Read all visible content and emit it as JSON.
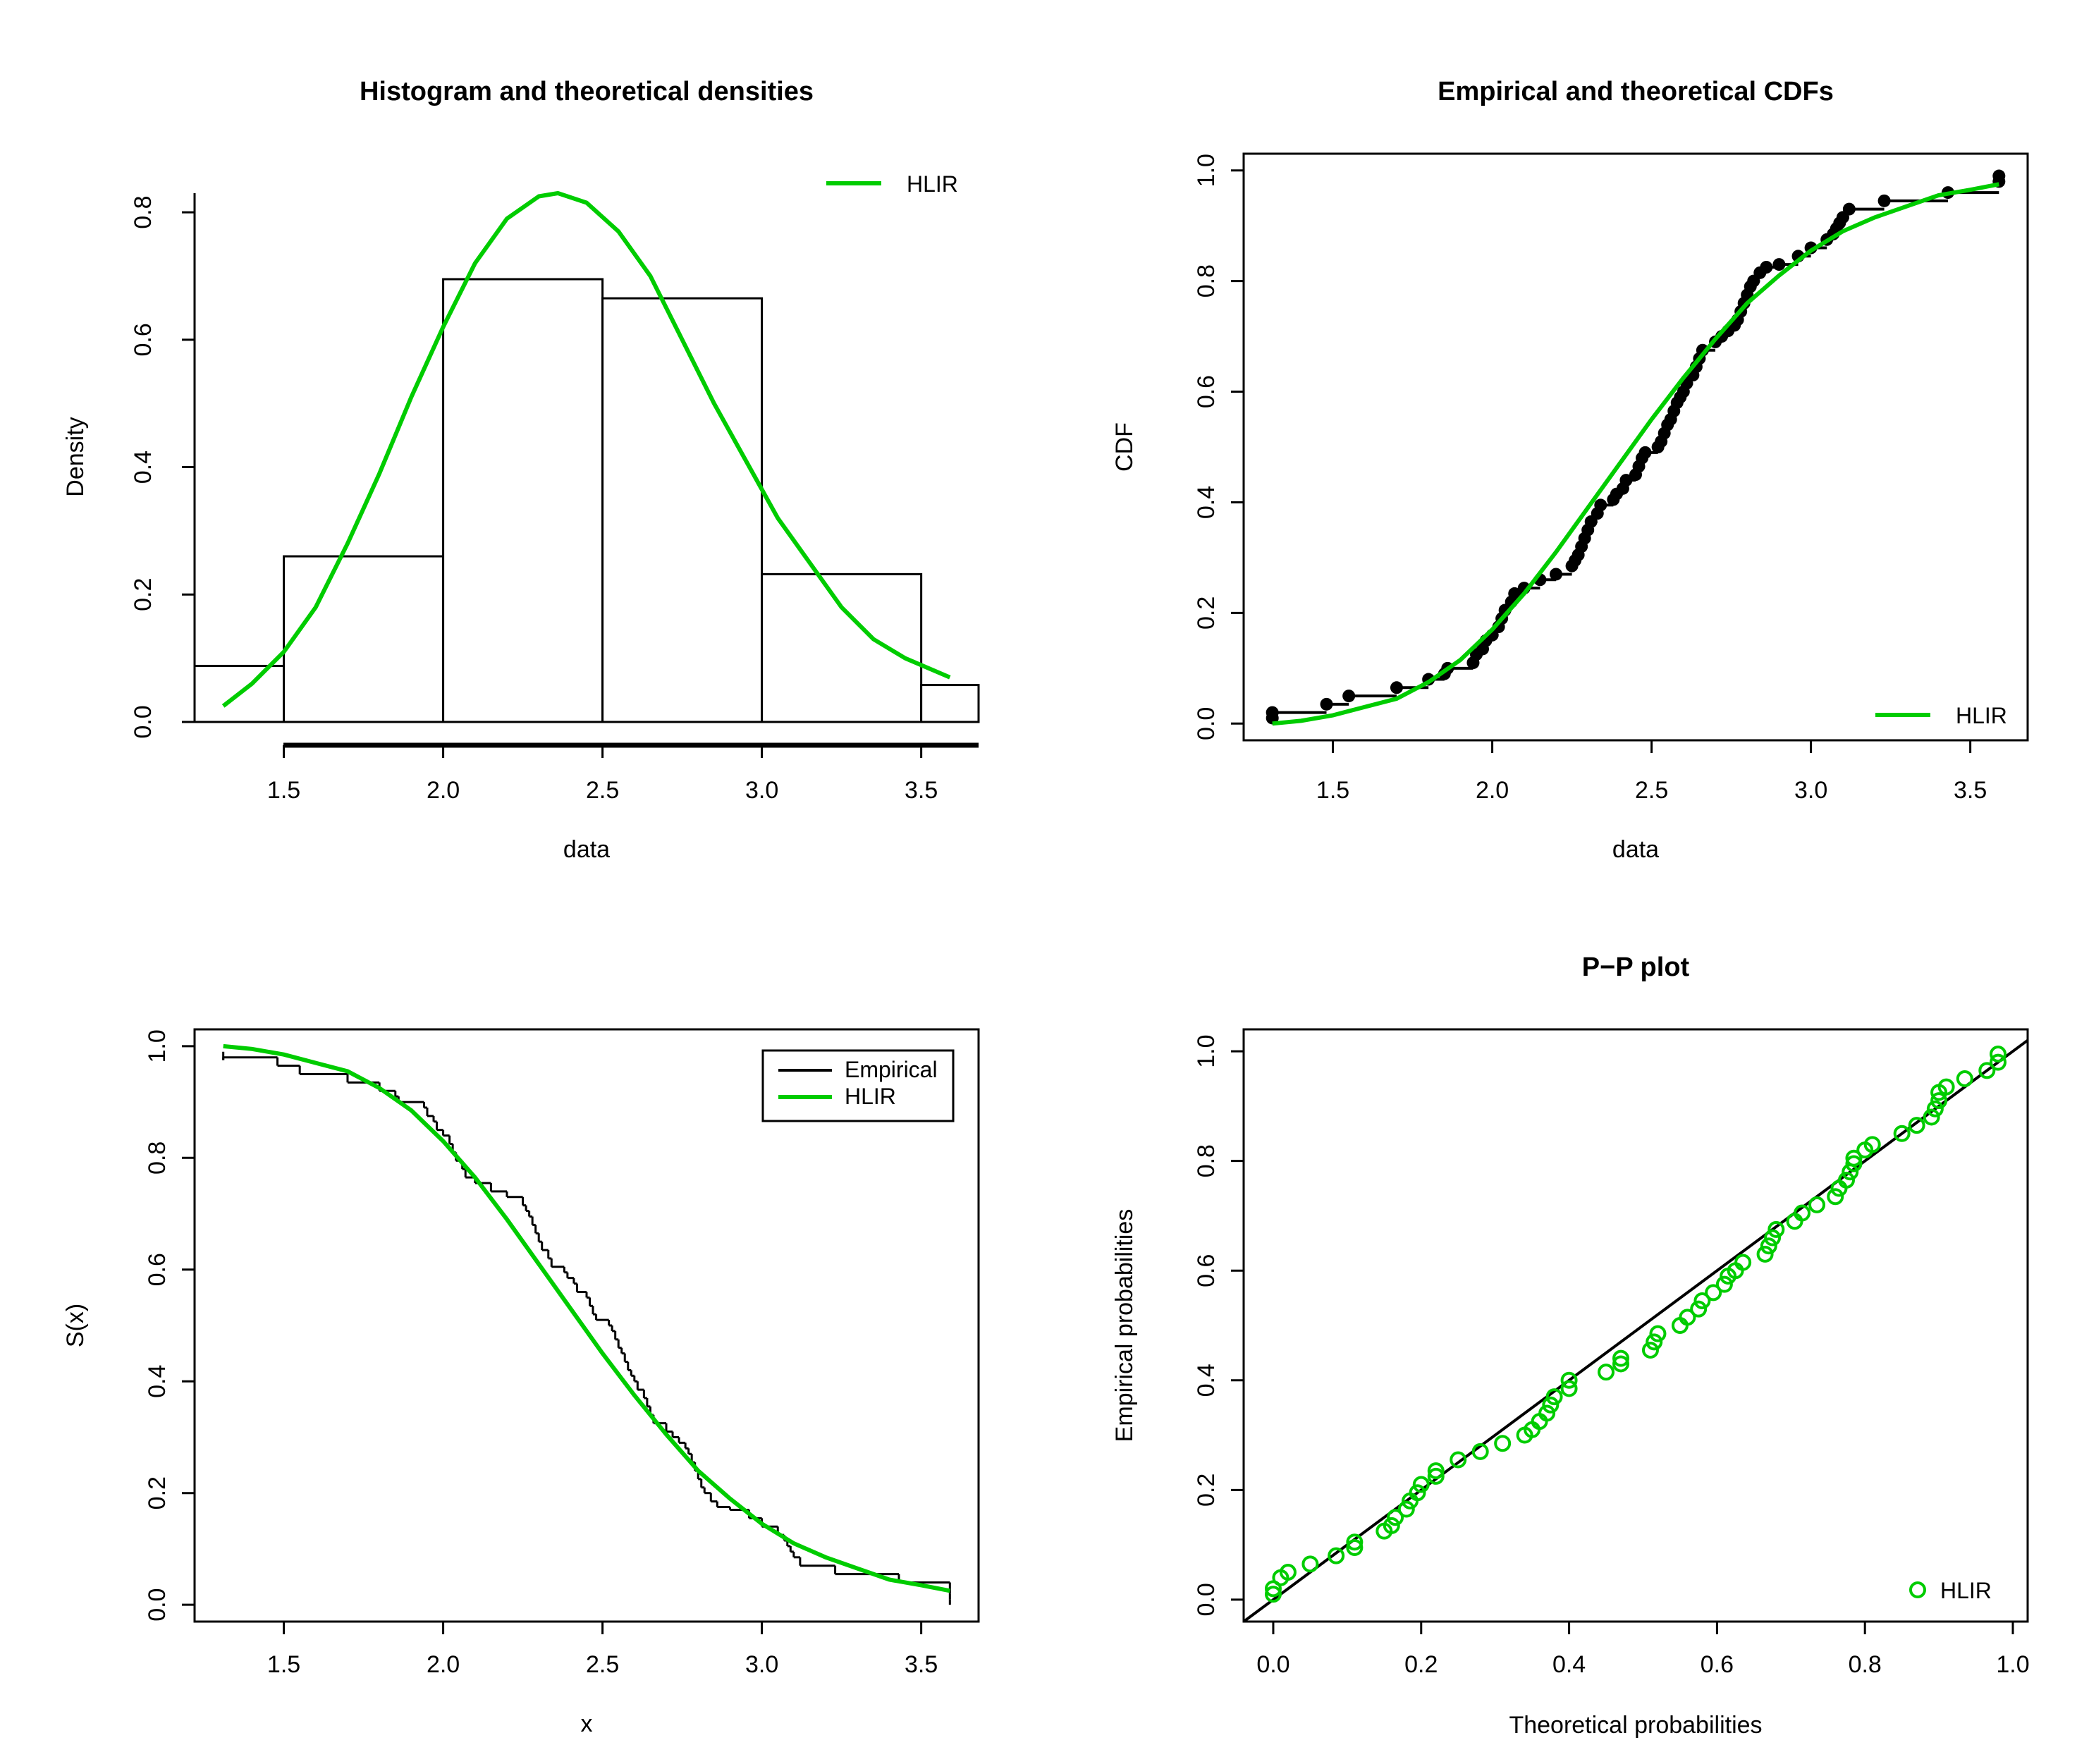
{
  "colors": {
    "fit": "#00cc00",
    "empirical": "#000000"
  },
  "chart_data": [
    {
      "id": "density",
      "type": "bar",
      "title": "Histogram and theoretical densities",
      "xlabel": "data",
      "ylabel": "Density",
      "xlim": [
        1.22,
        3.68
      ],
      "ylim": [
        0,
        0.83
      ],
      "xticks": [
        "1.5",
        "2.0",
        "2.5",
        "3.0",
        "3.5"
      ],
      "yticks": [
        "0.0",
        "0.2",
        "0.4",
        "0.6",
        "0.8"
      ],
      "bins": [
        {
          "from": 1.22,
          "to": 1.5,
          "density": 0.088
        },
        {
          "from": 1.5,
          "to": 2.0,
          "density": 0.26
        },
        {
          "from": 2.0,
          "to": 2.5,
          "density": 0.695
        },
        {
          "from": 2.5,
          "to": 3.0,
          "density": 0.665
        },
        {
          "from": 3.0,
          "to": 3.5,
          "density": 0.232
        },
        {
          "from": 3.5,
          "to": 3.68,
          "density": 0.058
        }
      ],
      "curve": {
        "name": "HLIR",
        "x": [
          1.31,
          1.4,
          1.5,
          1.6,
          1.7,
          1.8,
          1.9,
          2.0,
          2.1,
          2.2,
          2.3,
          2.36,
          2.45,
          2.55,
          2.65,
          2.75,
          2.85,
          2.95,
          3.05,
          3.15,
          3.25,
          3.35,
          3.45,
          3.59
        ],
        "y": [
          0.025,
          0.06,
          0.11,
          0.18,
          0.28,
          0.39,
          0.51,
          0.62,
          0.72,
          0.79,
          0.825,
          0.83,
          0.815,
          0.77,
          0.7,
          0.6,
          0.5,
          0.41,
          0.32,
          0.25,
          0.18,
          0.13,
          0.1,
          0.07
        ]
      },
      "legend": {
        "position": "top-right",
        "entries": [
          "HLIR"
        ]
      }
    },
    {
      "id": "cdf",
      "type": "line",
      "title": "Empirical and theoretical CDFs",
      "xlabel": "data",
      "ylabel": "CDF",
      "xlim": [
        1.22,
        3.68
      ],
      "ylim": [
        0,
        1.0
      ],
      "xticks": [
        "1.5",
        "2.0",
        "2.5",
        "3.0",
        "3.5"
      ],
      "yticks": [
        "0.0",
        "0.2",
        "0.4",
        "0.6",
        "0.8",
        "1.0"
      ],
      "empirical_points": [
        [
          1.31,
          0.01
        ],
        [
          1.31,
          0.02
        ],
        [
          1.48,
          0.035
        ],
        [
          1.55,
          0.05
        ],
        [
          1.7,
          0.065
        ],
        [
          1.8,
          0.08
        ],
        [
          1.85,
          0.09
        ],
        [
          1.86,
          0.1
        ],
        [
          1.94,
          0.11
        ],
        [
          1.95,
          0.125
        ],
        [
          1.97,
          0.135
        ],
        [
          1.98,
          0.15
        ],
        [
          2.0,
          0.16
        ],
        [
          2.02,
          0.175
        ],
        [
          2.03,
          0.19
        ],
        [
          2.04,
          0.205
        ],
        [
          2.06,
          0.22
        ],
        [
          2.07,
          0.235
        ],
        [
          2.1,
          0.245
        ],
        [
          2.15,
          0.26
        ],
        [
          2.2,
          0.27
        ],
        [
          2.25,
          0.285
        ],
        [
          2.26,
          0.295
        ],
        [
          2.27,
          0.305
        ],
        [
          2.28,
          0.32
        ],
        [
          2.29,
          0.335
        ],
        [
          2.3,
          0.35
        ],
        [
          2.31,
          0.365
        ],
        [
          2.33,
          0.38
        ],
        [
          2.34,
          0.395
        ],
        [
          2.38,
          0.405
        ],
        [
          2.39,
          0.415
        ],
        [
          2.41,
          0.425
        ],
        [
          2.42,
          0.44
        ],
        [
          2.45,
          0.45
        ],
        [
          2.46,
          0.465
        ],
        [
          2.47,
          0.48
        ],
        [
          2.48,
          0.49
        ],
        [
          2.52,
          0.5
        ],
        [
          2.53,
          0.51
        ],
        [
          2.54,
          0.525
        ],
        [
          2.55,
          0.54
        ],
        [
          2.56,
          0.55
        ],
        [
          2.57,
          0.565
        ],
        [
          2.58,
          0.58
        ],
        [
          2.59,
          0.59
        ],
        [
          2.6,
          0.6
        ],
        [
          2.61,
          0.615
        ],
        [
          2.63,
          0.63
        ],
        [
          2.64,
          0.645
        ],
        [
          2.65,
          0.66
        ],
        [
          2.66,
          0.675
        ],
        [
          2.7,
          0.69
        ],
        [
          2.72,
          0.7
        ],
        [
          2.74,
          0.71
        ],
        [
          2.76,
          0.72
        ],
        [
          2.77,
          0.73
        ],
        [
          2.78,
          0.745
        ],
        [
          2.79,
          0.76
        ],
        [
          2.8,
          0.775
        ],
        [
          2.81,
          0.79
        ],
        [
          2.82,
          0.8
        ],
        [
          2.84,
          0.815
        ],
        [
          2.86,
          0.825
        ],
        [
          2.9,
          0.83
        ],
        [
          2.96,
          0.845
        ],
        [
          3.0,
          0.86
        ],
        [
          3.05,
          0.875
        ],
        [
          3.07,
          0.885
        ],
        [
          3.08,
          0.895
        ],
        [
          3.09,
          0.905
        ],
        [
          3.1,
          0.915
        ],
        [
          3.12,
          0.93
        ],
        [
          3.23,
          0.945
        ],
        [
          3.43,
          0.96
        ],
        [
          3.59,
          0.98
        ],
        [
          3.59,
          0.99
        ]
      ],
      "curve": {
        "name": "HLIR",
        "x": [
          1.31,
          1.4,
          1.5,
          1.6,
          1.7,
          1.8,
          1.9,
          2.0,
          2.1,
          2.2,
          2.3,
          2.4,
          2.5,
          2.6,
          2.7,
          2.8,
          2.9,
          3.0,
          3.1,
          3.2,
          3.3,
          3.4,
          3.5,
          3.59
        ],
        "y": [
          0.0,
          0.005,
          0.015,
          0.03,
          0.045,
          0.075,
          0.115,
          0.17,
          0.235,
          0.31,
          0.39,
          0.47,
          0.55,
          0.625,
          0.695,
          0.76,
          0.81,
          0.855,
          0.89,
          0.915,
          0.935,
          0.955,
          0.965,
          0.975
        ]
      },
      "legend": {
        "position": "bottom-right",
        "entries": [
          "HLIR"
        ]
      }
    },
    {
      "id": "survival",
      "type": "line",
      "title": "",
      "xlabel": "x",
      "ylabel": "S(x)",
      "xlim": [
        1.22,
        3.68
      ],
      "ylim": [
        0,
        1.0
      ],
      "xticks": [
        "1.5",
        "2.0",
        "2.5",
        "3.0",
        "3.5"
      ],
      "yticks": [
        "0.0",
        "0.2",
        "0.4",
        "0.6",
        "0.8",
        "1.0"
      ],
      "curve": {
        "name": "HLIR",
        "x": [
          1.31,
          1.4,
          1.5,
          1.6,
          1.7,
          1.8,
          1.9,
          2.0,
          2.1,
          2.2,
          2.3,
          2.4,
          2.5,
          2.6,
          2.7,
          2.8,
          2.9,
          3.0,
          3.1,
          3.2,
          3.3,
          3.4,
          3.5,
          3.59
        ],
        "y": [
          1.0,
          0.995,
          0.985,
          0.97,
          0.955,
          0.925,
          0.885,
          0.83,
          0.765,
          0.69,
          0.61,
          0.53,
          0.45,
          0.375,
          0.305,
          0.24,
          0.19,
          0.145,
          0.11,
          0.085,
          0.065,
          0.045,
          0.035,
          0.025
        ]
      },
      "legend": {
        "position": "top-right",
        "entries": [
          "Empirical",
          "HLIR"
        ]
      }
    },
    {
      "id": "pp",
      "type": "scatter",
      "title": "P−P plot",
      "xlabel": "Theoretical probabilities",
      "ylabel": "Empirical probabilities",
      "xlim": [
        -0.04,
        1.02
      ],
      "ylim": [
        -0.04,
        1.04
      ],
      "xticks": [
        "0.0",
        "0.2",
        "0.4",
        "0.6",
        "0.8",
        "1.0"
      ],
      "yticks": [
        "0.0",
        "0.2",
        "0.4",
        "0.6",
        "0.8",
        "1.0"
      ],
      "diagonal": true,
      "points": [
        [
          0.0,
          0.01
        ],
        [
          0.0,
          0.02
        ],
        [
          0.01,
          0.04
        ],
        [
          0.02,
          0.05
        ],
        [
          0.05,
          0.065
        ],
        [
          0.085,
          0.08
        ],
        [
          0.11,
          0.095
        ],
        [
          0.11,
          0.105
        ],
        [
          0.15,
          0.125
        ],
        [
          0.16,
          0.135
        ],
        [
          0.165,
          0.15
        ],
        [
          0.18,
          0.165
        ],
        [
          0.185,
          0.18
        ],
        [
          0.195,
          0.195
        ],
        [
          0.2,
          0.21
        ],
        [
          0.22,
          0.225
        ],
        [
          0.22,
          0.235
        ],
        [
          0.25,
          0.255
        ],
        [
          0.28,
          0.27
        ],
        [
          0.31,
          0.285
        ],
        [
          0.34,
          0.3
        ],
        [
          0.35,
          0.31
        ],
        [
          0.36,
          0.325
        ],
        [
          0.37,
          0.34
        ],
        [
          0.375,
          0.355
        ],
        [
          0.38,
          0.37
        ],
        [
          0.4,
          0.385
        ],
        [
          0.4,
          0.4
        ],
        [
          0.45,
          0.415
        ],
        [
          0.47,
          0.43
        ],
        [
          0.47,
          0.44
        ],
        [
          0.51,
          0.455
        ],
        [
          0.515,
          0.47
        ],
        [
          0.52,
          0.485
        ],
        [
          0.55,
          0.5
        ],
        [
          0.56,
          0.515
        ],
        [
          0.575,
          0.53
        ],
        [
          0.58,
          0.545
        ],
        [
          0.595,
          0.56
        ],
        [
          0.61,
          0.575
        ],
        [
          0.615,
          0.59
        ],
        [
          0.625,
          0.6
        ],
        [
          0.635,
          0.615
        ],
        [
          0.665,
          0.63
        ],
        [
          0.67,
          0.645
        ],
        [
          0.675,
          0.66
        ],
        [
          0.68,
          0.675
        ],
        [
          0.705,
          0.69
        ],
        [
          0.715,
          0.705
        ],
        [
          0.735,
          0.72
        ],
        [
          0.76,
          0.735
        ],
        [
          0.765,
          0.75
        ],
        [
          0.775,
          0.765
        ],
        [
          0.78,
          0.78
        ],
        [
          0.785,
          0.795
        ],
        [
          0.785,
          0.805
        ],
        [
          0.8,
          0.82
        ],
        [
          0.81,
          0.83
        ],
        [
          0.85,
          0.85
        ],
        [
          0.87,
          0.865
        ],
        [
          0.89,
          0.88
        ],
        [
          0.895,
          0.895
        ],
        [
          0.9,
          0.91
        ],
        [
          0.9,
          0.925
        ],
        [
          0.91,
          0.935
        ],
        [
          0.935,
          0.95
        ],
        [
          0.965,
          0.965
        ],
        [
          0.98,
          0.98
        ],
        [
          0.98,
          0.995
        ]
      ],
      "legend": {
        "position": "bottom-right",
        "entries": [
          "HLIR"
        ]
      }
    }
  ]
}
